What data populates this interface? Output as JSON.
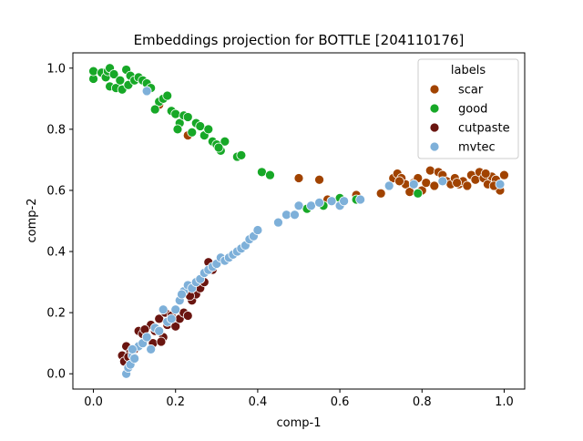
{
  "chart_data": {
    "type": "scatter",
    "title": "Embeddings projection for BOTTLE [204110176]",
    "xlabel": "comp-1",
    "ylabel": "comp-2",
    "xlim": [
      -0.05,
      1.05
    ],
    "ylim": [
      -0.05,
      1.05
    ],
    "xticks": [
      "0.0",
      "0.2",
      "0.4",
      "0.6",
      "0.8",
      "1.0"
    ],
    "yticks": [
      "0.0",
      "0.2",
      "0.4",
      "0.6",
      "0.8",
      "1.0"
    ],
    "grid": false,
    "legend": {
      "title": "labels",
      "placement": "top-right"
    },
    "series": [
      {
        "name": "scar",
        "color": "#a14300",
        "points": [
          [
            0.16,
            0.88
          ],
          [
            0.23,
            0.78
          ],
          [
            0.5,
            0.64
          ],
          [
            0.55,
            0.635
          ],
          [
            0.55,
            0.56
          ],
          [
            0.57,
            0.57
          ],
          [
            0.64,
            0.585
          ],
          [
            0.7,
            0.59
          ],
          [
            0.73,
            0.64
          ],
          [
            0.74,
            0.655
          ],
          [
            0.75,
            0.64
          ],
          [
            0.76,
            0.62
          ],
          [
            0.77,
            0.595
          ],
          [
            0.78,
            0.625
          ],
          [
            0.79,
            0.64
          ],
          [
            0.8,
            0.6
          ],
          [
            0.81,
            0.625
          ],
          [
            0.82,
            0.665
          ],
          [
            0.83,
            0.615
          ],
          [
            0.84,
            0.66
          ],
          [
            0.85,
            0.65
          ],
          [
            0.86,
            0.63
          ],
          [
            0.87,
            0.62
          ],
          [
            0.88,
            0.64
          ],
          [
            0.89,
            0.62
          ],
          [
            0.9,
            0.63
          ],
          [
            0.91,
            0.615
          ],
          [
            0.92,
            0.65
          ],
          [
            0.93,
            0.635
          ],
          [
            0.94,
            0.66
          ],
          [
            0.95,
            0.64
          ],
          [
            0.96,
            0.62
          ],
          [
            0.97,
            0.645
          ],
          [
            0.98,
            0.635
          ],
          [
            0.99,
            0.6
          ],
          [
            1.0,
            0.65
          ],
          [
            0.975,
            0.615
          ],
          [
            0.955,
            0.655
          ],
          [
            0.885,
            0.625
          ],
          [
            0.745,
            0.63
          ]
        ]
      },
      {
        "name": "good",
        "color": "#17a827",
        "points": [
          [
            0.0,
            0.965
          ],
          [
            0.0,
            0.99
          ],
          [
            0.02,
            0.985
          ],
          [
            0.03,
            0.97
          ],
          [
            0.035,
            0.99
          ],
          [
            0.04,
            1.0
          ],
          [
            0.04,
            0.94
          ],
          [
            0.05,
            0.98
          ],
          [
            0.055,
            0.935
          ],
          [
            0.065,
            0.96
          ],
          [
            0.07,
            0.93
          ],
          [
            0.08,
            0.995
          ],
          [
            0.085,
            0.945
          ],
          [
            0.09,
            0.975
          ],
          [
            0.1,
            0.96
          ],
          [
            0.11,
            0.97
          ],
          [
            0.12,
            0.96
          ],
          [
            0.13,
            0.95
          ],
          [
            0.14,
            0.935
          ],
          [
            0.16,
            0.89
          ],
          [
            0.17,
            0.9
          ],
          [
            0.18,
            0.91
          ],
          [
            0.19,
            0.86
          ],
          [
            0.2,
            0.85
          ],
          [
            0.21,
            0.82
          ],
          [
            0.22,
            0.845
          ],
          [
            0.23,
            0.84
          ],
          [
            0.24,
            0.79
          ],
          [
            0.25,
            0.82
          ],
          [
            0.26,
            0.81
          ],
          [
            0.27,
            0.78
          ],
          [
            0.28,
            0.8
          ],
          [
            0.29,
            0.76
          ],
          [
            0.3,
            0.75
          ],
          [
            0.31,
            0.73
          ],
          [
            0.32,
            0.76
          ],
          [
            0.35,
            0.71
          ],
          [
            0.36,
            0.715
          ],
          [
            0.41,
            0.66
          ],
          [
            0.43,
            0.65
          ],
          [
            0.52,
            0.54
          ],
          [
            0.56,
            0.55
          ],
          [
            0.6,
            0.575
          ],
          [
            0.64,
            0.57
          ],
          [
            0.79,
            0.59
          ],
          [
            0.205,
            0.8
          ],
          [
            0.15,
            0.865
          ],
          [
            0.305,
            0.74
          ]
        ]
      },
      {
        "name": "cutpaste",
        "color": "#6a1510",
        "points": [
          [
            0.07,
            0.06
          ],
          [
            0.075,
            0.04
          ],
          [
            0.08,
            0.09
          ],
          [
            0.09,
            0.07
          ],
          [
            0.1,
            0.08
          ],
          [
            0.11,
            0.14
          ],
          [
            0.12,
            0.13
          ],
          [
            0.13,
            0.12
          ],
          [
            0.14,
            0.16
          ],
          [
            0.145,
            0.1
          ],
          [
            0.15,
            0.14
          ],
          [
            0.16,
            0.18
          ],
          [
            0.17,
            0.12
          ],
          [
            0.175,
            0.2
          ],
          [
            0.18,
            0.16
          ],
          [
            0.19,
            0.19
          ],
          [
            0.2,
            0.155
          ],
          [
            0.21,
            0.18
          ],
          [
            0.22,
            0.2
          ],
          [
            0.23,
            0.19
          ],
          [
            0.24,
            0.24
          ],
          [
            0.25,
            0.26
          ],
          [
            0.26,
            0.28
          ],
          [
            0.27,
            0.3
          ],
          [
            0.28,
            0.365
          ],
          [
            0.29,
            0.34
          ],
          [
            0.165,
            0.105
          ],
          [
            0.125,
            0.145
          ],
          [
            0.085,
            0.055
          ],
          [
            0.235,
            0.255
          ]
        ]
      },
      {
        "name": "mvtec",
        "color": "#7eb0d9",
        "points": [
          [
            0.08,
            0.0
          ],
          [
            0.085,
            0.02
          ],
          [
            0.09,
            0.03
          ],
          [
            0.095,
            0.06
          ],
          [
            0.1,
            0.05
          ],
          [
            0.11,
            0.09
          ],
          [
            0.12,
            0.1
          ],
          [
            0.13,
            0.12
          ],
          [
            0.14,
            0.08
          ],
          [
            0.15,
            0.15
          ],
          [
            0.16,
            0.14
          ],
          [
            0.17,
            0.21
          ],
          [
            0.18,
            0.17
          ],
          [
            0.19,
            0.18
          ],
          [
            0.2,
            0.21
          ],
          [
            0.21,
            0.24
          ],
          [
            0.22,
            0.27
          ],
          [
            0.23,
            0.29
          ],
          [
            0.24,
            0.28
          ],
          [
            0.25,
            0.3
          ],
          [
            0.26,
            0.31
          ],
          [
            0.27,
            0.33
          ],
          [
            0.28,
            0.34
          ],
          [
            0.29,
            0.35
          ],
          [
            0.3,
            0.36
          ],
          [
            0.31,
            0.38
          ],
          [
            0.32,
            0.37
          ],
          [
            0.33,
            0.38
          ],
          [
            0.34,
            0.39
          ],
          [
            0.35,
            0.4
          ],
          [
            0.36,
            0.41
          ],
          [
            0.37,
            0.42
          ],
          [
            0.38,
            0.44
          ],
          [
            0.39,
            0.45
          ],
          [
            0.4,
            0.47
          ],
          [
            0.45,
            0.495
          ],
          [
            0.47,
            0.52
          ],
          [
            0.49,
            0.52
          ],
          [
            0.5,
            0.55
          ],
          [
            0.53,
            0.55
          ],
          [
            0.55,
            0.56
          ],
          [
            0.58,
            0.565
          ],
          [
            0.6,
            0.55
          ],
          [
            0.61,
            0.565
          ],
          [
            0.65,
            0.57
          ],
          [
            0.72,
            0.615
          ],
          [
            0.78,
            0.62
          ],
          [
            0.85,
            0.63
          ],
          [
            0.99,
            0.62
          ],
          [
            0.13,
            0.925
          ],
          [
            0.095,
            0.08
          ],
          [
            0.215,
            0.26
          ]
        ]
      }
    ]
  }
}
